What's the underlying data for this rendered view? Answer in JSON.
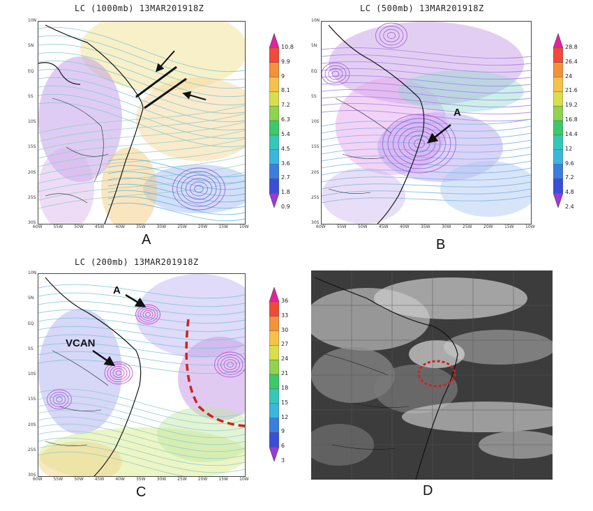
{
  "panels": {
    "a": {
      "title": "LC (1000mb) 13MAR201918Z",
      "label": "A",
      "colorbar": [
        "10.8",
        "9.9",
        "9",
        "8.1",
        "7.2",
        "6.3",
        "5.4",
        "4.5",
        "3.6",
        "2.7",
        "1.8",
        "0.9"
      ]
    },
    "b": {
      "title": "LC (500mb) 13MAR201918Z",
      "label": "B",
      "annotation": "A",
      "colorbar": [
        "28.8",
        "26.4",
        "24",
        "21.6",
        "19.2",
        "16.8",
        "14.4",
        "12",
        "9.6",
        "7.2",
        "4.8",
        "2.4"
      ]
    },
    "c": {
      "title": "LC (200mb) 13MAR201918Z",
      "label": "C",
      "annotation_a": "A",
      "annotation_vcan": "VCAN",
      "colorbar": [
        "36",
        "33",
        "30",
        "27",
        "24",
        "21",
        "18",
        "15",
        "12",
        "9",
        "6",
        "3"
      ]
    },
    "d": {
      "label": "D"
    }
  },
  "lat_labels": [
    "10N",
    "5N",
    "EQ",
    "5S",
    "10S",
    "15S",
    "20S",
    "25S",
    "30S"
  ],
  "lon_labels": [
    "60W",
    "55W",
    "50W",
    "45W",
    "40W",
    "35W",
    "30W",
    "25W",
    "20W",
    "15W",
    "10W"
  ],
  "colors": {
    "cbar": [
      "#e2229f",
      "#f04a3a",
      "#f5913a",
      "#f6c14a",
      "#d9de4c",
      "#8fd34f",
      "#3dc86a",
      "#35c8b8",
      "#3cb6de",
      "#3a7fe0",
      "#3a4fd8",
      "#9a3ad8"
    ],
    "annotation_dash": "#d42020"
  }
}
